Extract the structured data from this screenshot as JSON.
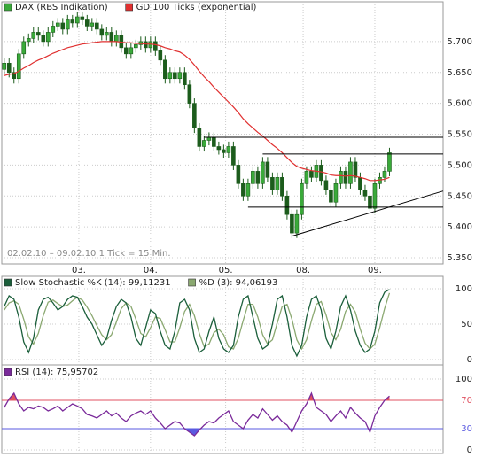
{
  "chart_data": [
    {
      "type": "candlestick",
      "series": [
        {
          "name": "DAX (RBS Indikation)",
          "color": "#3aaa3a",
          "down_color": "#1c5c1c",
          "open": [
            5.655,
            5.665,
            5.65,
            5.64,
            5.68,
            5.7,
            5.705,
            5.715,
            5.71,
            5.7,
            5.715,
            5.725,
            5.73,
            5.72,
            5.735,
            5.73,
            5.74,
            5.735,
            5.725,
            5.73,
            5.72,
            5.71,
            5.715,
            5.7,
            5.71,
            5.69,
            5.68,
            5.69,
            5.695,
            5.7,
            5.69,
            5.7,
            5.685,
            5.67,
            5.64,
            5.65,
            5.64,
            5.65,
            5.63,
            5.6,
            5.56,
            5.53,
            5.54,
            5.545,
            5.53,
            5.525,
            5.52,
            5.53,
            5.5,
            5.47,
            5.45,
            5.47,
            5.49,
            5.47,
            5.505,
            5.48,
            5.46,
            5.48,
            5.45,
            5.42,
            5.39,
            5.42,
            5.47,
            5.49,
            5.48,
            5.5,
            5.475,
            5.46,
            5.44,
            5.47,
            5.49,
            5.47,
            5.505,
            5.48,
            5.46,
            5.45,
            5.43,
            5.47,
            5.48,
            5.49
          ],
          "high": [
            5.673,
            5.673,
            5.658,
            5.688,
            5.708,
            5.713,
            5.723,
            5.723,
            5.718,
            5.723,
            5.733,
            5.738,
            5.738,
            5.743,
            5.743,
            5.748,
            5.748,
            5.743,
            5.738,
            5.738,
            5.728,
            5.723,
            5.723,
            5.718,
            5.718,
            5.698,
            5.698,
            5.703,
            5.708,
            5.708,
            5.708,
            5.708,
            5.693,
            5.678,
            5.658,
            5.658,
            5.658,
            5.658,
            5.638,
            5.608,
            5.568,
            5.548,
            5.553,
            5.553,
            5.538,
            5.533,
            5.538,
            5.538,
            5.508,
            5.478,
            5.478,
            5.498,
            5.498,
            5.513,
            5.513,
            5.488,
            5.488,
            5.488,
            5.458,
            5.428,
            5.428,
            5.478,
            5.498,
            5.498,
            5.508,
            5.508,
            5.483,
            5.468,
            5.478,
            5.498,
            5.498,
            5.513,
            5.513,
            5.488,
            5.468,
            5.458,
            5.478,
            5.488,
            5.498,
            5.528
          ],
          "low": [
            5.647,
            5.642,
            5.632,
            5.632,
            5.672,
            5.692,
            5.697,
            5.702,
            5.692,
            5.692,
            5.707,
            5.717,
            5.712,
            5.712,
            5.722,
            5.722,
            5.727,
            5.717,
            5.717,
            5.712,
            5.702,
            5.702,
            5.692,
            5.692,
            5.682,
            5.672,
            5.672,
            5.682,
            5.687,
            5.682,
            5.682,
            5.677,
            5.662,
            5.632,
            5.632,
            5.632,
            5.632,
            5.622,
            5.592,
            5.552,
            5.522,
            5.522,
            5.532,
            5.522,
            5.517,
            5.512,
            5.512,
            5.492,
            5.462,
            5.442,
            5.442,
            5.462,
            5.462,
            5.462,
            5.472,
            5.452,
            5.452,
            5.442,
            5.412,
            5.382,
            5.382,
            5.412,
            5.462,
            5.472,
            5.472,
            5.467,
            5.452,
            5.432,
            5.432,
            5.462,
            5.462,
            5.462,
            5.472,
            5.452,
            5.442,
            5.422,
            5.422,
            5.462,
            5.472,
            5.482
          ],
          "close": [
            5.665,
            5.65,
            5.64,
            5.68,
            5.7,
            5.705,
            5.715,
            5.71,
            5.7,
            5.715,
            5.725,
            5.73,
            5.72,
            5.735,
            5.73,
            5.74,
            5.735,
            5.725,
            5.73,
            5.72,
            5.71,
            5.715,
            5.7,
            5.71,
            5.69,
            5.68,
            5.69,
            5.695,
            5.7,
            5.69,
            5.7,
            5.685,
            5.67,
            5.64,
            5.65,
            5.64,
            5.65,
            5.63,
            5.6,
            5.56,
            5.53,
            5.54,
            5.545,
            5.53,
            5.525,
            5.52,
            5.53,
            5.5,
            5.47,
            5.45,
            5.47,
            5.49,
            5.47,
            5.505,
            5.48,
            5.46,
            5.48,
            5.45,
            5.42,
            5.39,
            5.42,
            5.47,
            5.49,
            5.48,
            5.5,
            5.475,
            5.46,
            5.44,
            5.47,
            5.49,
            5.47,
            5.505,
            5.48,
            5.46,
            5.45,
            5.43,
            5.47,
            5.48,
            5.49,
            5.52
          ]
        },
        {
          "name": "GD 100 Ticks (exponential)",
          "color": "#e03030",
          "values": [
            5.645,
            5.647,
            5.648,
            5.652,
            5.657,
            5.661,
            5.666,
            5.67,
            5.673,
            5.677,
            5.681,
            5.684,
            5.687,
            5.69,
            5.692,
            5.694,
            5.696,
            5.697,
            5.698,
            5.699,
            5.7,
            5.7,
            5.7,
            5.7,
            5.699,
            5.698,
            5.698,
            5.697,
            5.697,
            5.696,
            5.696,
            5.695,
            5.693,
            5.69,
            5.688,
            5.685,
            5.683,
            5.678,
            5.671,
            5.662,
            5.652,
            5.643,
            5.635,
            5.626,
            5.618,
            5.61,
            5.602,
            5.594,
            5.585,
            5.575,
            5.567,
            5.56,
            5.553,
            5.547,
            5.54,
            5.533,
            5.527,
            5.52,
            5.512,
            5.504,
            5.498,
            5.495,
            5.493,
            5.491,
            5.49,
            5.489,
            5.487,
            5.484,
            5.483,
            5.483,
            5.482,
            5.483,
            5.482,
            5.48,
            5.478,
            5.475,
            5.475,
            5.476,
            5.477,
            5.48
          ]
        }
      ],
      "lines": [
        {
          "x": [
            41,
            90
          ],
          "y": [
            5.545,
            5.545
          ]
        },
        {
          "x": [
            53,
            90
          ],
          "y": [
            5.518,
            5.518
          ]
        },
        {
          "x": [
            50,
            90
          ],
          "y": [
            5.432,
            5.432
          ]
        },
        {
          "x": [
            59,
            90
          ],
          "y": [
            5.385,
            5.458
          ]
        }
      ],
      "note": "02.02.10 – 09.02.10   1 Tick = 15 Min.",
      "xlim": [
        -0.5,
        90
      ],
      "xticks": [
        {
          "value": 15.3,
          "label": "03."
        },
        {
          "value": 30,
          "label": "04."
        },
        {
          "value": 45.4,
          "label": "05."
        },
        {
          "value": 61.3,
          "label": "08."
        },
        {
          "value": 76,
          "label": "09."
        }
      ],
      "ylim": [
        5.34,
        5.75
      ],
      "yticks": [
        {
          "value": 5.35,
          "label": "5.350"
        },
        {
          "value": 5.4,
          "label": "5.400"
        },
        {
          "value": 5.45,
          "label": "5.450"
        },
        {
          "value": 5.5,
          "label": "5.500"
        },
        {
          "value": 5.55,
          "label": "5.550"
        },
        {
          "value": 5.6,
          "label": "5.600"
        },
        {
          "value": 5.65,
          "label": "5.650"
        },
        {
          "value": 5.7,
          "label": "5.700"
        }
      ],
      "grid": true
    },
    {
      "type": "line",
      "series": [
        {
          "name": "Slow Stochastic %K (14): 99,11231",
          "color": "#1a5e3a",
          "values": [
            75,
            90,
            85,
            60,
            25,
            10,
            30,
            70,
            85,
            88,
            80,
            70,
            75,
            85,
            90,
            88,
            75,
            60,
            50,
            35,
            20,
            30,
            55,
            75,
            85,
            80,
            60,
            30,
            20,
            45,
            70,
            65,
            40,
            20,
            15,
            40,
            80,
            85,
            70,
            30,
            10,
            15,
            40,
            60,
            30,
            15,
            10,
            20,
            60,
            85,
            90,
            60,
            30,
            15,
            20,
            50,
            85,
            90,
            60,
            20,
            5,
            20,
            60,
            85,
            90,
            70,
            30,
            15,
            40,
            75,
            90,
            70,
            40,
            20,
            10,
            15,
            40,
            80,
            95,
            99
          ]
        },
        {
          "name": "%D (3): 94,06193",
          "color": "#8aa870",
          "values": [
            70,
            80,
            83,
            78,
            57,
            32,
            22,
            37,
            62,
            81,
            84,
            79,
            75,
            77,
            83,
            88,
            84,
            74,
            62,
            48,
            35,
            28,
            35,
            53,
            72,
            80,
            75,
            57,
            37,
            32,
            45,
            60,
            58,
            42,
            25,
            25,
            45,
            68,
            78,
            62,
            37,
            18,
            22,
            38,
            43,
            35,
            18,
            15,
            30,
            55,
            78,
            78,
            60,
            35,
            22,
            28,
            52,
            75,
            78,
            57,
            28,
            15,
            28,
            55,
            78,
            82,
            63,
            38,
            28,
            43,
            68,
            78,
            67,
            43,
            23,
            15,
            22,
            45,
            72,
            94
          ]
        }
      ],
      "xlim": [
        -0.5,
        90
      ],
      "ylim": [
        0,
        100
      ],
      "yticks": [
        0,
        50,
        100
      ],
      "grid": true
    },
    {
      "type": "line",
      "series": [
        {
          "name": "RSI (14): 75,95702",
          "color": "#7a2a9a",
          "values": [
            60,
            72,
            80,
            65,
            55,
            60,
            58,
            62,
            60,
            55,
            58,
            62,
            55,
            60,
            65,
            62,
            58,
            50,
            48,
            45,
            50,
            55,
            48,
            52,
            45,
            40,
            48,
            52,
            55,
            50,
            55,
            45,
            38,
            30,
            35,
            40,
            38,
            30,
            25,
            20,
            28,
            35,
            40,
            38,
            45,
            50,
            55,
            40,
            35,
            30,
            42,
            50,
            45,
            58,
            50,
            42,
            48,
            40,
            35,
            25,
            40,
            55,
            65,
            80,
            60,
            55,
            50,
            40,
            48,
            55,
            45,
            60,
            52,
            45,
            40,
            25,
            48,
            60,
            70,
            76
          ]
        }
      ],
      "bands": {
        "upper": 70,
        "lower": 30,
        "upper_color": "#e05060",
        "lower_color": "#5a5ae0"
      },
      "xlim": [
        -0.5,
        90
      ],
      "ylim": [
        0,
        100
      ],
      "yticks": [
        0,
        30,
        70,
        100
      ],
      "grid": true
    }
  ]
}
